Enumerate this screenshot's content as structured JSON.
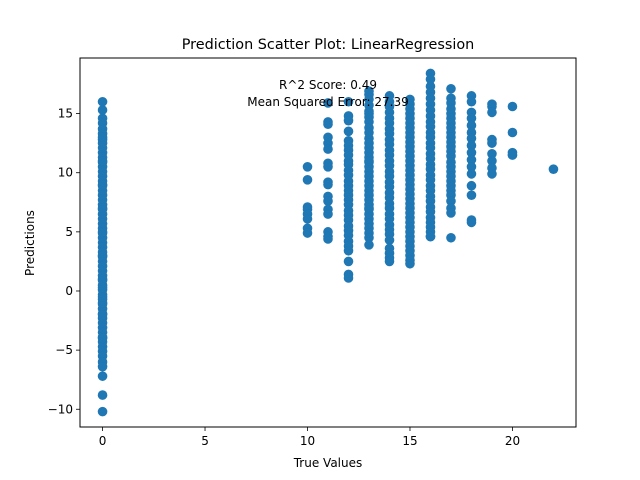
{
  "chart_data": {
    "type": "scatter",
    "title": "Prediction Scatter Plot: LinearRegression",
    "xlabel": "True Values",
    "ylabel": "Predictions",
    "xlim": [
      -1.1,
      23.1
    ],
    "ylim": [
      -11.5,
      19.7
    ],
    "xticks": [
      0,
      5,
      10,
      15,
      20
    ],
    "yticks": [
      -10,
      -5,
      0,
      5,
      10,
      15
    ],
    "ytick_labels": [
      "−10",
      "−5",
      "0",
      "5",
      "10",
      "15"
    ],
    "grid": false,
    "marker_color": "#1f77b4",
    "annotations": [
      "R^2 Score: 0.49",
      "Mean Squared Error: 27.39"
    ],
    "series": [
      {
        "x": [
          0,
          0,
          0,
          0,
          0,
          0,
          0,
          0,
          0,
          0,
          0,
          0,
          0,
          0,
          0,
          0,
          0,
          0,
          0,
          0,
          0,
          0,
          0,
          0,
          0,
          0,
          0,
          0,
          0,
          0,
          0,
          0,
          0,
          0,
          0,
          0,
          0,
          0,
          0,
          0,
          0,
          0,
          0,
          0,
          0,
          0,
          0,
          0,
          0,
          0,
          0,
          0,
          0,
          0,
          0,
          0,
          0,
          0,
          0,
          0,
          0,
          0,
          0,
          0,
          0,
          0,
          0,
          0,
          0,
          0,
          10,
          10,
          10,
          10,
          10,
          10,
          10,
          10,
          11,
          11,
          11,
          11,
          11,
          11,
          11,
          11,
          11,
          11,
          11,
          11,
          11,
          11,
          11,
          11,
          11,
          12,
          12,
          12,
          12,
          12,
          12,
          12,
          12,
          12,
          12,
          12,
          12,
          12,
          12,
          12,
          12,
          12,
          12,
          12,
          12,
          12,
          12,
          12,
          12,
          12,
          12,
          12,
          12,
          12,
          12,
          13,
          13,
          13,
          13,
          13,
          13,
          13,
          13,
          13,
          13,
          13,
          13,
          13,
          13,
          13,
          13,
          13,
          13,
          13,
          13,
          13,
          13,
          13,
          13,
          13,
          13,
          13,
          13,
          13,
          13,
          13,
          13,
          13,
          13,
          13,
          14,
          14,
          14,
          14,
          14,
          14,
          14,
          14,
          14,
          14,
          14,
          14,
          14,
          14,
          14,
          14,
          14,
          14,
          14,
          14,
          14,
          14,
          14,
          14,
          14,
          14,
          14,
          14,
          14,
          14,
          14,
          14,
          15,
          15,
          15,
          15,
          15,
          15,
          15,
          15,
          15,
          15,
          15,
          15,
          15,
          15,
          15,
          15,
          15,
          15,
          15,
          15,
          15,
          15,
          15,
          15,
          15,
          15,
          15,
          15,
          15,
          15,
          15,
          15,
          15,
          15,
          15,
          15,
          16,
          16,
          16,
          16,
          16,
          16,
          16,
          16,
          16,
          16,
          16,
          16,
          16,
          16,
          16,
          16,
          16,
          16,
          16,
          16,
          16,
          16,
          16,
          16,
          16,
          16,
          16,
          16,
          16,
          16,
          16,
          16,
          17,
          17,
          17,
          17,
          17,
          17,
          17,
          17,
          17,
          17,
          17,
          17,
          17,
          17,
          17,
          17,
          17,
          17,
          17,
          17,
          17,
          17,
          17,
          17,
          17,
          17,
          18,
          18,
          18,
          18,
          18,
          18,
          18,
          18,
          18,
          18,
          18,
          18,
          18,
          18,
          18,
          18,
          19,
          19,
          19,
          19,
          19,
          19,
          19,
          19,
          19,
          20,
          20,
          20,
          20,
          20,
          22
        ],
        "y": [
          16.0,
          14.6,
          14.2,
          13.7,
          13.3,
          12.8,
          12.5,
          12.1,
          11.7,
          11.3,
          10.9,
          10.5,
          10.1,
          9.7,
          9.3,
          8.9,
          8.5,
          8.1,
          7.7,
          7.3,
          6.9,
          6.5,
          6.1,
          5.7,
          5.3,
          4.9,
          4.5,
          4.1,
          3.7,
          3.3,
          2.9,
          2.5,
          2.1,
          1.7,
          1.3,
          0.9,
          0.5,
          0.1,
          -0.3,
          -0.7,
          -1.1,
          -1.5,
          -1.9,
          -2.3,
          -2.7,
          -3.1,
          -3.5,
          -3.9,
          -4.3,
          -4.7,
          -5.1,
          -5.5,
          -6.0,
          -6.4,
          -7.2,
          -8.8,
          -10.2,
          15.3,
          13.0,
          11.0,
          9.0,
          7.0,
          5.0,
          3.0,
          1.0,
          -1.0,
          -2.0,
          -4.0,
          0.3,
          -0.5,
          10.5,
          9.4,
          7.1,
          6.9,
          6.5,
          6.1,
          5.3,
          4.9,
          15.9,
          14.3,
          14.1,
          13.0,
          12.5,
          12.0,
          10.8,
          10.5,
          9.2,
          9.0,
          8.0,
          7.6,
          6.9,
          6.5,
          5.0,
          4.6,
          4.4,
          16.0,
          14.8,
          14.4,
          13.5,
          12.7,
          12.3,
          11.9,
          11.5,
          11.0,
          10.7,
          10.2,
          9.8,
          9.3,
          8.9,
          8.5,
          8.1,
          7.7,
          7.3,
          6.8,
          6.4,
          6.0,
          5.5,
          5.1,
          4.7,
          4.2,
          3.8,
          3.4,
          2.5,
          1.4,
          1.1,
          16.6,
          16.2,
          15.7,
          15.2,
          14.7,
          14.3,
          13.8,
          13.4,
          12.9,
          12.5,
          12.1,
          11.7,
          11.3,
          10.9,
          10.5,
          10.1,
          9.7,
          9.3,
          8.9,
          8.5,
          8.1,
          7.7,
          7.3,
          6.9,
          6.5,
          6.1,
          5.7,
          5.3,
          4.9,
          4.5,
          3.9,
          16.9,
          15.0,
          11.0,
          7.0,
          16.5,
          16.0,
          15.6,
          15.1,
          14.6,
          14.2,
          13.7,
          13.3,
          12.8,
          12.4,
          11.9,
          11.5,
          11.0,
          10.6,
          10.1,
          9.7,
          9.2,
          8.8,
          8.3,
          7.9,
          7.4,
          7.0,
          6.5,
          6.1,
          5.6,
          5.2,
          4.8,
          4.3,
          3.6,
          3.2,
          2.8,
          2.5,
          16.2,
          15.8,
          15.4,
          15.0,
          14.6,
          14.2,
          13.8,
          13.4,
          13.0,
          12.6,
          12.2,
          11.8,
          11.4,
          11.0,
          10.6,
          10.2,
          9.8,
          9.4,
          9.0,
          8.6,
          8.2,
          7.8,
          7.4,
          7.0,
          6.6,
          6.2,
          5.8,
          5.4,
          5.0,
          4.6,
          4.2,
          3.8,
          3.4,
          3.0,
          2.6,
          2.3,
          18.4,
          17.9,
          17.3,
          16.8,
          16.3,
          15.8,
          15.3,
          14.8,
          14.3,
          13.9,
          13.4,
          13.0,
          12.5,
          12.1,
          11.6,
          11.2,
          10.7,
          10.3,
          9.8,
          9.4,
          8.9,
          8.5,
          8.0,
          7.6,
          7.1,
          6.7,
          6.2,
          5.8,
          5.4,
          5.0,
          4.6,
          4.6,
          17.1,
          16.3,
          15.9,
          15.4,
          15.0,
          14.6,
          14.2,
          13.8,
          13.4,
          13.0,
          12.6,
          12.2,
          11.8,
          11.4,
          10.9,
          10.5,
          10.1,
          9.7,
          9.3,
          8.9,
          8.5,
          8.1,
          7.6,
          7.0,
          6.6,
          4.5,
          16.5,
          15.1,
          14.6,
          14.0,
          13.4,
          12.9,
          12.3,
          11.7,
          11.1,
          10.5,
          9.9,
          8.9,
          8.1,
          6.0,
          5.8,
          16.0,
          15.8,
          15.6,
          15.1,
          12.8,
          12.5,
          11.6,
          11.0,
          10.4,
          9.9,
          15.6,
          13.4,
          11.7,
          11.5,
          11.5,
          10.3
        ]
      }
    ]
  }
}
